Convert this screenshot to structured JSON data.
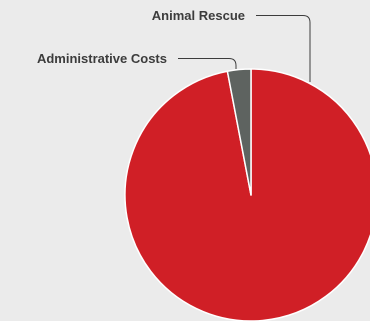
{
  "chart_data": {
    "type": "pie",
    "title": "",
    "slices": [
      {
        "label": "Animal Rescue",
        "value": 97,
        "color": "#d01f26"
      },
      {
        "label": "Administrative Costs",
        "value": 3,
        "color": "#5e6360"
      }
    ],
    "legend": "none"
  }
}
